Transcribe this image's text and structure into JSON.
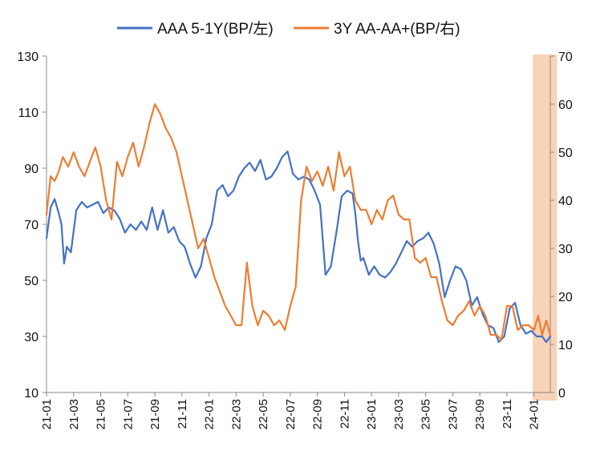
{
  "chart_data": {
    "type": "line",
    "title": "",
    "colors": {
      "series1": "#4472C4",
      "series2": "#ED7D31",
      "highlight": "#F8CBAD"
    },
    "legend": {
      "placement": "top-center"
    },
    "grid": false,
    "x_ticks": [
      "21-01",
      "21-03",
      "21-05",
      "21-07",
      "21-09",
      "21-11",
      "22-01",
      "22-03",
      "22-05",
      "22-07",
      "22-09",
      "22-11",
      "23-01",
      "23-03",
      "23-05",
      "23-07",
      "23-09",
      "23-11",
      "24-01"
    ],
    "x_range": [
      0,
      37.2
    ],
    "y_left": {
      "ticks": [
        10,
        30,
        50,
        70,
        90,
        110,
        130
      ],
      "range": [
        10,
        130
      ]
    },
    "y_right": {
      "ticks": [
        0,
        10,
        20,
        30,
        40,
        50,
        60,
        70
      ],
      "range": [
        0,
        70
      ]
    },
    "highlight_x_range": [
      35.9,
      37.7
    ],
    "series": [
      {
        "name": "AAA 5-1Y(BP/左)",
        "axis": "left",
        "color": "#4472C4",
        "x": [
          0,
          0.3,
          0.6,
          0.9,
          1.1,
          1.3,
          1.5,
          1.8,
          2.2,
          2.6,
          3.0,
          3.4,
          3.8,
          4.2,
          4.6,
          5.0,
          5.4,
          5.8,
          6.2,
          6.6,
          7.0,
          7.4,
          7.8,
          8.2,
          8.6,
          9.0,
          9.4,
          9.8,
          10.2,
          10.6,
          11.0,
          11.4,
          11.8,
          12.2,
          12.6,
          13.0,
          13.4,
          13.8,
          14.2,
          14.6,
          15.0,
          15.4,
          15.8,
          16.2,
          16.6,
          17.0,
          17.4,
          17.8,
          18.2,
          18.6,
          19.0,
          19.4,
          19.8,
          20.2,
          20.6,
          21.0,
          21.4,
          21.8,
          22.2,
          22.6,
          22.8,
          23.0,
          23.2,
          23.4,
          23.8,
          24.2,
          24.6,
          25.0,
          25.4,
          25.8,
          26.2,
          26.6,
          27.0,
          27.4,
          27.8,
          28.2,
          28.6,
          29.0,
          29.4,
          29.8,
          30.2,
          30.6,
          31.0,
          31.4,
          31.8,
          32.2,
          32.6,
          33.0,
          33.4,
          33.8,
          34.2,
          34.6,
          35.0,
          35.4,
          35.8,
          36.2,
          36.6,
          36.9,
          37.2
        ],
        "values": [
          65,
          76,
          79,
          74,
          70,
          56,
          62,
          60,
          75,
          78,
          76,
          77,
          78,
          74,
          76,
          75,
          72,
          67,
          70,
          68,
          71,
          68,
          76,
          68,
          75,
          67,
          69,
          64,
          62,
          56,
          51,
          55,
          65,
          70,
          82,
          84,
          80,
          82,
          87,
          90,
          92,
          89,
          93,
          86,
          87,
          90,
          94,
          96,
          88,
          86,
          87,
          86,
          82,
          77,
          52,
          55,
          67,
          80,
          82,
          81,
          74,
          64,
          57,
          58,
          52,
          55,
          52,
          51,
          53,
          56,
          60,
          64,
          62,
          64,
          65,
          67,
          63,
          56,
          44,
          50,
          55,
          54,
          50,
          41,
          44,
          38,
          34,
          33,
          28,
          30,
          40,
          42,
          34,
          31,
          32,
          30,
          30,
          28,
          30
        ]
      },
      {
        "name": "3Y AA-AA+(BP/右)",
        "axis": "right",
        "color": "#ED7D31",
        "x": [
          0,
          0.3,
          0.6,
          0.9,
          1.2,
          1.6,
          2.0,
          2.4,
          2.8,
          3.2,
          3.6,
          4.0,
          4.4,
          4.8,
          5.2,
          5.6,
          6.0,
          6.4,
          6.8,
          7.2,
          7.6,
          8.0,
          8.4,
          8.8,
          9.2,
          9.6,
          10.0,
          10.4,
          10.8,
          11.2,
          11.6,
          12.0,
          12.4,
          12.8,
          13.2,
          13.6,
          14.0,
          14.4,
          14.8,
          15.2,
          15.6,
          16.0,
          16.4,
          16.8,
          17.2,
          17.6,
          18.0,
          18.4,
          18.8,
          19.2,
          19.6,
          20.0,
          20.4,
          20.8,
          21.2,
          21.6,
          22.0,
          22.4,
          22.8,
          23.2,
          23.6,
          24.0,
          24.4,
          24.8,
          25.2,
          25.6,
          26.0,
          26.4,
          26.8,
          27.2,
          27.6,
          28.0,
          28.4,
          28.8,
          29.2,
          29.6,
          30.0,
          30.4,
          30.8,
          31.2,
          31.6,
          32.0,
          32.4,
          32.8,
          33.2,
          33.6,
          34.0,
          34.4,
          34.8,
          35.2,
          35.6,
          36.0,
          36.3,
          36.6,
          36.9,
          37.2
        ],
        "values": [
          37,
          45,
          44,
          46,
          49,
          47,
          50,
          47,
          45,
          48,
          51,
          47,
          40,
          36,
          48,
          45,
          49,
          52,
          47,
          51,
          56,
          60,
          58,
          55,
          53,
          50,
          45,
          40,
          35,
          30,
          32,
          28,
          24,
          21,
          18,
          16,
          14,
          14,
          27,
          18,
          14,
          17,
          16,
          14,
          15,
          13,
          18,
          22,
          40,
          47,
          44,
          46,
          43,
          47,
          42,
          50,
          45,
          47,
          40,
          38,
          38,
          35,
          38,
          36,
          40,
          41,
          37,
          36,
          36,
          28,
          27,
          28,
          24,
          24,
          19,
          15,
          14,
          16,
          17,
          19,
          16,
          18,
          16,
          12,
          12,
          11,
          18,
          18,
          13,
          14,
          14,
          13,
          16,
          12,
          15,
          12
        ]
      }
    ]
  }
}
